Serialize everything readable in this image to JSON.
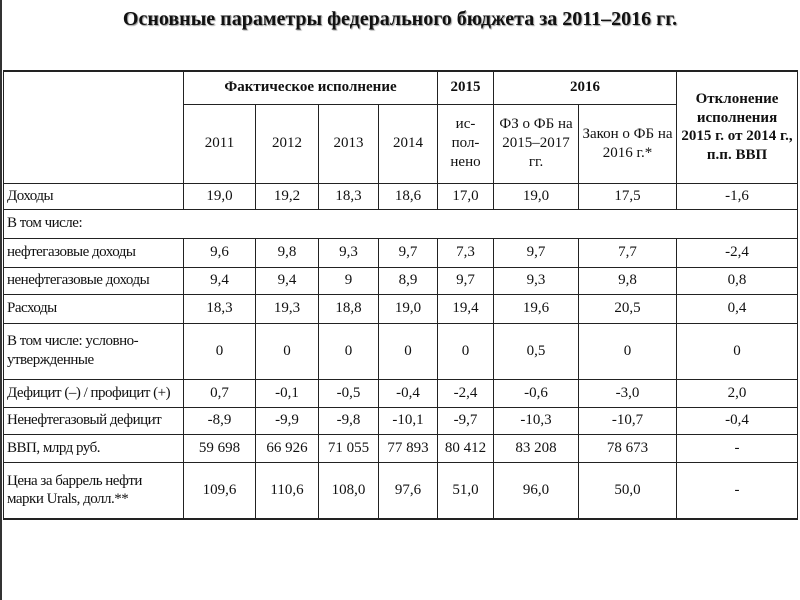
{
  "title": "Основные параметры федерального бюджета за 2011–2016 гг.",
  "table": {
    "header": {
      "group_actual": "Фактическое исполнение",
      "group_2015": "2015",
      "group_2016": "2016",
      "deviation": "Отклонение исполнения 2015 г. от 2014 г., п.п. ВВП",
      "years": [
        "2011",
        "2012",
        "2013",
        "2014"
      ],
      "col_2015": "ис-пол-нено",
      "col_fz": "ФЗ о ФБ на 2015–2017 гг.",
      "col_law": "Закон о ФБ на 2016 г.*"
    },
    "rows": [
      {
        "label": "Доходы",
        "values": [
          "19,0",
          "19,2",
          "18,3",
          "18,6",
          "17,0",
          "19,0",
          "17,5",
          "-1,6"
        ]
      },
      {
        "label": "В том числе:",
        "values": []
      },
      {
        "label": "нефтегазовые доходы",
        "values": [
          "9,6",
          "9,8",
          "9,3",
          "9,7",
          "7,3",
          "9,7",
          "7,7",
          "-2,4"
        ]
      },
      {
        "label": "ненефтегазовые доходы",
        "values": [
          "9,4",
          "9,4",
          "9",
          "8,9",
          "9,7",
          "9,3",
          "9,8",
          "0,8"
        ]
      },
      {
        "label": "Расходы",
        "values": [
          "18,3",
          "19,3",
          "18,8",
          "19,0",
          "19,4",
          "19,6",
          "20,5",
          "0,4"
        ]
      },
      {
        "label": "В том числе: условно- утвержденные",
        "values": [
          "0",
          "0",
          "0",
          "0",
          "0",
          "0,5",
          "0",
          "0"
        ]
      },
      {
        "label": "Дефицит (–) / профицит (+)",
        "values": [
          "0,7",
          "-0,1",
          "-0,5",
          "-0,4",
          "-2,4",
          "-0,6",
          "-3,0",
          "2,0"
        ]
      },
      {
        "label": "Ненефтегазовый дефицит",
        "values": [
          "-8,9",
          "-9,9",
          "-9,8",
          "-10,1",
          "-9,7",
          "-10,3",
          "-10,7",
          "-0,4"
        ]
      },
      {
        "label": "ВВП, млрд руб.",
        "values": [
          "59 698",
          "66 926",
          "71 055",
          "77 893",
          "80 412",
          "83 208",
          "78 673",
          "-"
        ]
      },
      {
        "label": "Цена за баррель нефти марки Urals, долл.**",
        "values": [
          "109,6",
          "110,6",
          "108,0",
          "97,6",
          "51,0",
          "96,0",
          "50,0",
          "-"
        ]
      }
    ]
  }
}
